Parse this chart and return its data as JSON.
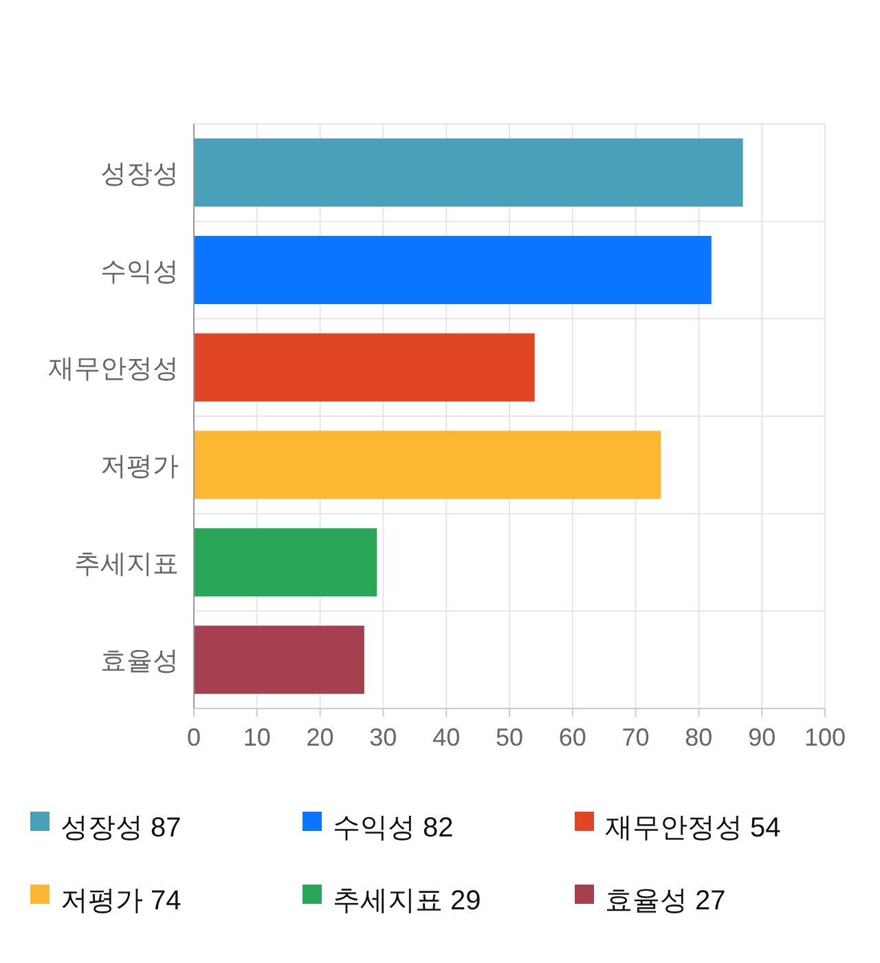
{
  "chart_data": {
    "type": "bar",
    "orientation": "horizontal",
    "categories": [
      "성장성",
      "수익성",
      "재무안정성",
      "저평가",
      "추세지표",
      "효율성"
    ],
    "series": [
      {
        "name": "성장성 87",
        "color": "#4aa0b9",
        "values": [
          87,
          null,
          null,
          null,
          null,
          null
        ]
      },
      {
        "name": "수익성 82",
        "color": "#0a75fe",
        "values": [
          null,
          82,
          null,
          null,
          null,
          null
        ]
      },
      {
        "name": "재무안정성 54",
        "color": "#e04526",
        "values": [
          null,
          null,
          54,
          null,
          null,
          null
        ]
      },
      {
        "name": "저평가 74",
        "color": "#feb733",
        "values": [
          null,
          null,
          null,
          74,
          null,
          null
        ]
      },
      {
        "name": "추세지표 29",
        "color": "#29a657",
        "values": [
          null,
          null,
          null,
          null,
          29,
          null
        ]
      },
      {
        "name": "효율성 27",
        "color": "#a6404f",
        "values": [
          null,
          null,
          null,
          null,
          null,
          27
        ]
      }
    ],
    "xlim": [
      0,
      100
    ],
    "xticks": [
      0,
      10,
      20,
      30,
      40,
      50,
      60,
      70,
      80,
      90,
      100
    ],
    "grid": true,
    "legend": "bottom"
  }
}
